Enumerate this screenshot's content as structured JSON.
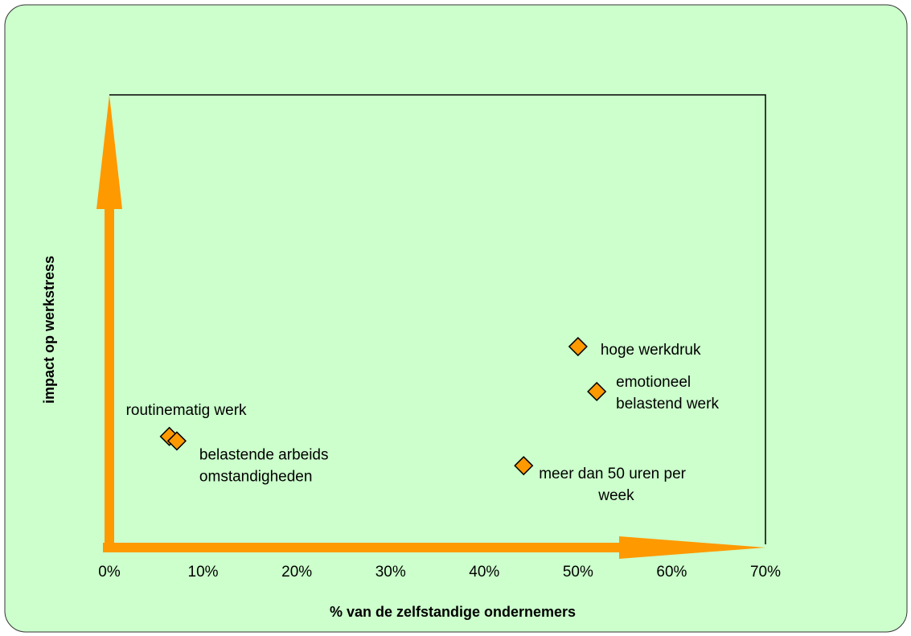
{
  "chart_data": {
    "type": "scatter",
    "x_label": "% van de zelfstandige ondernemers",
    "y_label": "impact op werkstress",
    "xlim": [
      0,
      70
    ],
    "xticks": [
      {
        "value": 0,
        "label": "0%"
      },
      {
        "value": 10,
        "label": "10%"
      },
      {
        "value": 20,
        "label": "20%"
      },
      {
        "value": 30,
        "label": "30%"
      },
      {
        "value": 40,
        "label": "40%"
      },
      {
        "value": 50,
        "label": "50%"
      },
      {
        "value": 60,
        "label": "60%"
      },
      {
        "value": 70,
        "label": "70%"
      }
    ],
    "ylim": [
      0,
      100
    ],
    "color": "#ff9900",
    "points": [
      {
        "label": [
          "hoge werkdruk"
        ],
        "x": 50,
        "y": 44
      },
      {
        "label": [
          "emotioneel",
          "belastend werk"
        ],
        "x": 52,
        "y": 34
      },
      {
        "label": [
          "routinematig werk"
        ],
        "x": 6.4,
        "y": 24
      },
      {
        "label": [
          "belastende arbeids",
          "omstandigheden"
        ],
        "x": 7.2,
        "y": 23
      },
      {
        "label": [
          "meer dan 50 uren per",
          "week"
        ],
        "x": 44.2,
        "y": 17.5
      }
    ]
  }
}
